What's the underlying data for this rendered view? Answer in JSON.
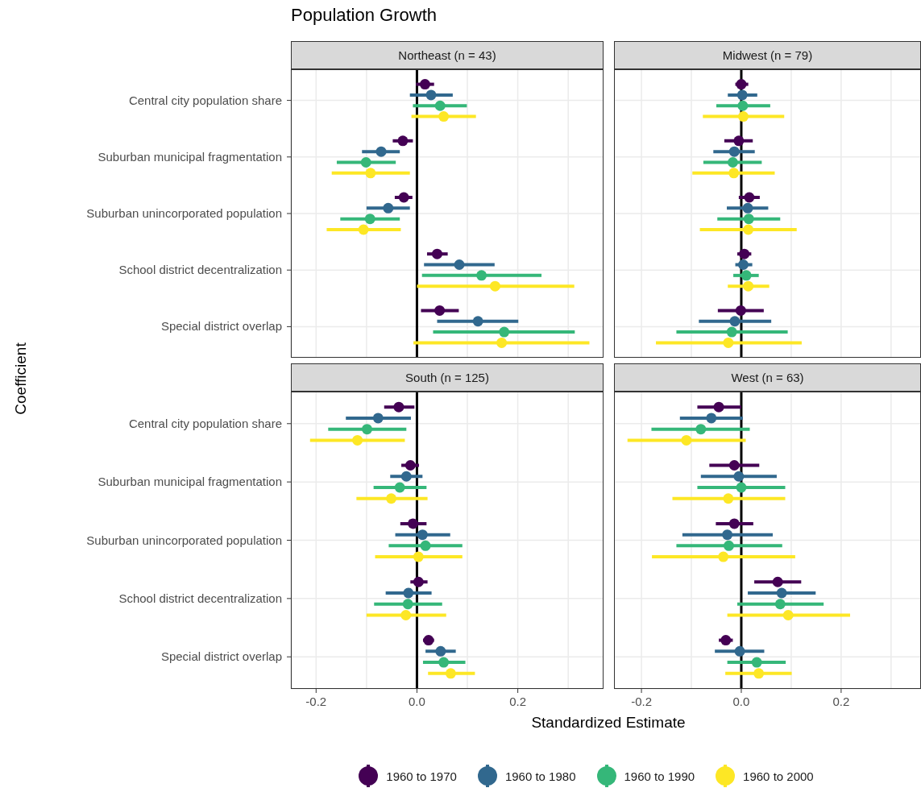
{
  "chart_data": [
    {
      "type": "scatter",
      "orientation": "horizontal",
      "title": "Population Growth",
      "subtitle": "Northeast (n = 43)",
      "ylabel": "Coefficient",
      "legend": "bottom",
      "marker": "circle",
      "grid": true,
      "tick_labels": "y",
      "categories": [
        "Central city population share",
        "Suburban municipal fragmentation",
        "Suburban unincorporated population",
        "School district decentralization",
        "Special district overlap"
      ],
      "xlim": [
        -0.25,
        0.37
      ],
      "xticks": [
        {
          "value": -0.2,
          "label": null
        },
        {
          "value": -0.1,
          "label": null
        },
        {
          "value": 0,
          "label": null
        },
        {
          "value": 0.1,
          "label": null
        },
        {
          "value": 0.2,
          "label": null
        },
        {
          "value": 0.3,
          "label": null
        }
      ],
      "ref_lines": [
        {
          "axis": "x",
          "value": 0,
          "color": "#000000"
        }
      ],
      "series": [
        {
          "name": "1960 to 1970",
          "color": "#440154",
          "values": [
            0.016,
            -0.028,
            -0.026,
            0.04,
            0.045
          ],
          "errors": [
            [
              -0.002,
              0.034
            ],
            [
              -0.048,
              -0.008
            ],
            [
              -0.044,
              -0.009
            ],
            [
              0.02,
              0.061
            ],
            [
              0.008,
              0.083
            ]
          ]
        },
        {
          "name": "1960 to 1980",
          "color": "#31688e",
          "values": [
            0.028,
            -0.071,
            -0.057,
            0.084,
            0.121
          ],
          "errors": [
            [
              -0.014,
              0.071
            ],
            [
              -0.109,
              -0.034
            ],
            [
              -0.1,
              -0.014
            ],
            [
              0.014,
              0.154
            ],
            [
              0.04,
              0.201
            ]
          ]
        },
        {
          "name": "1960 to 1990",
          "color": "#35b779",
          "values": [
            0.046,
            -0.101,
            -0.093,
            0.128,
            0.173
          ],
          "errors": [
            [
              -0.008,
              0.099
            ],
            [
              -0.159,
              -0.042
            ],
            [
              -0.152,
              -0.034
            ],
            [
              0.01,
              0.247
            ],
            [
              0.032,
              0.313
            ]
          ]
        },
        {
          "name": "1960 to 2000",
          "color": "#fde725",
          "values": [
            0.053,
            -0.092,
            -0.106,
            0.155,
            0.168
          ],
          "errors": [
            [
              -0.011,
              0.117
            ],
            [
              -0.169,
              -0.014
            ],
            [
              -0.179,
              -0.032
            ],
            [
              0.0,
              0.312
            ],
            [
              -0.007,
              0.342
            ]
          ]
        }
      ]
    },
    {
      "type": "scatter",
      "orientation": "horizontal",
      "subtitle": "Midwest (n = 79)",
      "marker": "circle",
      "grid": true,
      "tick_labels": false,
      "categories": [
        null,
        null,
        null,
        null,
        null
      ],
      "xlim": [
        -0.255,
        0.36
      ],
      "xticks": [
        {
          "value": -0.2,
          "label": null
        },
        {
          "value": -0.1,
          "label": null
        },
        {
          "value": 0,
          "label": null
        },
        {
          "value": 0.1,
          "label": null
        },
        {
          "value": 0.2,
          "label": null
        },
        {
          "value": 0.3,
          "label": null
        }
      ],
      "ref_lines": [
        {
          "axis": "x",
          "value": 0,
          "color": "#000000"
        }
      ],
      "series": [
        {
          "color": "#440154",
          "values": [
            0.0,
            -0.005,
            0.016,
            0.006,
            -0.001
          ],
          "errors": [
            [
              -0.012,
              0.014
            ],
            [
              -0.034,
              0.023
            ],
            [
              -0.005,
              0.037
            ],
            [
              -0.008,
              0.02
            ],
            [
              -0.047,
              0.045
            ]
          ]
        },
        {
          "color": "#31688e",
          "values": [
            0.002,
            -0.014,
            0.013,
            0.004,
            -0.013
          ],
          "errors": [
            [
              -0.027,
              0.032
            ],
            [
              -0.056,
              0.027
            ],
            [
              -0.029,
              0.054
            ],
            [
              -0.012,
              0.022
            ],
            [
              -0.085,
              0.06
            ]
          ]
        },
        {
          "color": "#35b779",
          "values": [
            0.003,
            -0.017,
            0.015,
            0.01,
            -0.019
          ],
          "errors": [
            [
              -0.05,
              0.058
            ],
            [
              -0.076,
              0.041
            ],
            [
              -0.048,
              0.078
            ],
            [
              -0.016,
              0.035
            ],
            [
              -0.13,
              0.093
            ]
          ]
        },
        {
          "color": "#fde725",
          "values": [
            0.004,
            -0.015,
            0.014,
            0.014,
            -0.026
          ],
          "errors": [
            [
              -0.077,
              0.086
            ],
            [
              -0.098,
              0.067
            ],
            [
              -0.083,
              0.111
            ],
            [
              -0.027,
              0.056
            ],
            [
              -0.171,
              0.121
            ]
          ]
        }
      ]
    },
    {
      "type": "scatter",
      "orientation": "horizontal",
      "subtitle": "South (n = 125)",
      "xlabel": "Standardized Estimate",
      "marker": "circle",
      "grid": true,
      "categories": [
        "Central city population share",
        "Suburban municipal fragmentation",
        "Suburban unincorporated population",
        "School district decentralization",
        "Special district overlap"
      ],
      "xlim": [
        -0.25,
        0.37
      ],
      "xticks": [
        {
          "value": -0.2,
          "label": "-0.2"
        },
        {
          "value": -0.1,
          "label": null
        },
        {
          "value": 0,
          "label": "0.0"
        },
        {
          "value": 0.1,
          "label": null
        },
        {
          "value": 0.2,
          "label": "0.2"
        },
        {
          "value": 0.3,
          "label": null
        }
      ],
      "ref_lines": [
        {
          "axis": "x",
          "value": 0,
          "color": "#000000"
        }
      ],
      "series": [
        {
          "color": "#440154",
          "values": [
            -0.036,
            -0.013,
            -0.008,
            0.003,
            0.023
          ],
          "errors": [
            [
              -0.065,
              -0.005
            ],
            [
              -0.031,
              0.004
            ],
            [
              -0.033,
              0.019
            ],
            [
              -0.013,
              0.021
            ],
            [
              0.012,
              0.034
            ]
          ]
        },
        {
          "color": "#31688e",
          "values": [
            -0.077,
            -0.021,
            0.011,
            -0.017,
            0.047
          ],
          "errors": [
            [
              -0.141,
              -0.012
            ],
            [
              -0.053,
              0.011
            ],
            [
              -0.043,
              0.066
            ],
            [
              -0.062,
              0.029
            ],
            [
              0.017,
              0.077
            ]
          ]
        },
        {
          "color": "#35b779",
          "values": [
            -0.099,
            -0.034,
            0.017,
            -0.018,
            0.053
          ],
          "errors": [
            [
              -0.176,
              -0.021
            ],
            [
              -0.086,
              0.019
            ],
            [
              -0.056,
              0.09
            ],
            [
              -0.085,
              0.05
            ],
            [
              0.012,
              0.096
            ]
          ]
        },
        {
          "color": "#fde725",
          "values": [
            -0.118,
            -0.051,
            0.003,
            -0.022,
            0.067
          ],
          "errors": [
            [
              -0.212,
              -0.024
            ],
            [
              -0.12,
              0.021
            ],
            [
              -0.083,
              0.09
            ],
            [
              -0.1,
              0.058
            ],
            [
              0.022,
              0.115
            ]
          ]
        }
      ]
    },
    {
      "type": "scatter",
      "orientation": "horizontal",
      "subtitle": "West (n = 63)",
      "marker": "circle",
      "grid": true,
      "tick_labels": "x",
      "categories": [
        null,
        null,
        null,
        null,
        null
      ],
      "xlim": [
        -0.255,
        0.36
      ],
      "xticks": [
        {
          "value": -0.2,
          "label": "-0.2"
        },
        {
          "value": -0.1,
          "label": null
        },
        {
          "value": 0,
          "label": "0.0"
        },
        {
          "value": 0.1,
          "label": null
        },
        {
          "value": 0.2,
          "label": "0.2"
        },
        {
          "value": 0.3,
          "label": null
        }
      ],
      "ref_lines": [
        {
          "axis": "x",
          "value": 0,
          "color": "#000000"
        }
      ],
      "series": [
        {
          "color": "#440154",
          "values": [
            -0.045,
            -0.014,
            -0.014,
            0.073,
            -0.031
          ],
          "errors": [
            [
              -0.088,
              0.0
            ],
            [
              -0.064,
              0.036
            ],
            [
              -0.051,
              0.024
            ],
            [
              0.026,
              0.12
            ],
            [
              -0.045,
              -0.017
            ]
          ]
        },
        {
          "color": "#31688e",
          "values": [
            -0.06,
            -0.005,
            -0.028,
            0.081,
            -0.003
          ],
          "errors": [
            [
              -0.123,
              0.003
            ],
            [
              -0.081,
              0.071
            ],
            [
              -0.118,
              0.063
            ],
            [
              0.013,
              0.149
            ],
            [
              -0.053,
              0.046
            ]
          ]
        },
        {
          "color": "#35b779",
          "values": [
            -0.081,
            0.0,
            -0.025,
            0.078,
            0.031
          ],
          "errors": [
            [
              -0.18,
              0.017
            ],
            [
              -0.088,
              0.088
            ],
            [
              -0.13,
              0.082
            ],
            [
              -0.008,
              0.165
            ],
            [
              -0.028,
              0.089
            ]
          ]
        },
        {
          "color": "#fde725",
          "values": [
            -0.11,
            -0.026,
            -0.036,
            0.094,
            0.035
          ],
          "errors": [
            [
              -0.228,
              0.009
            ],
            [
              -0.138,
              0.088
            ],
            [
              -0.179,
              0.108
            ],
            [
              -0.028,
              0.218
            ],
            [
              -0.032,
              0.101
            ]
          ]
        }
      ]
    }
  ]
}
